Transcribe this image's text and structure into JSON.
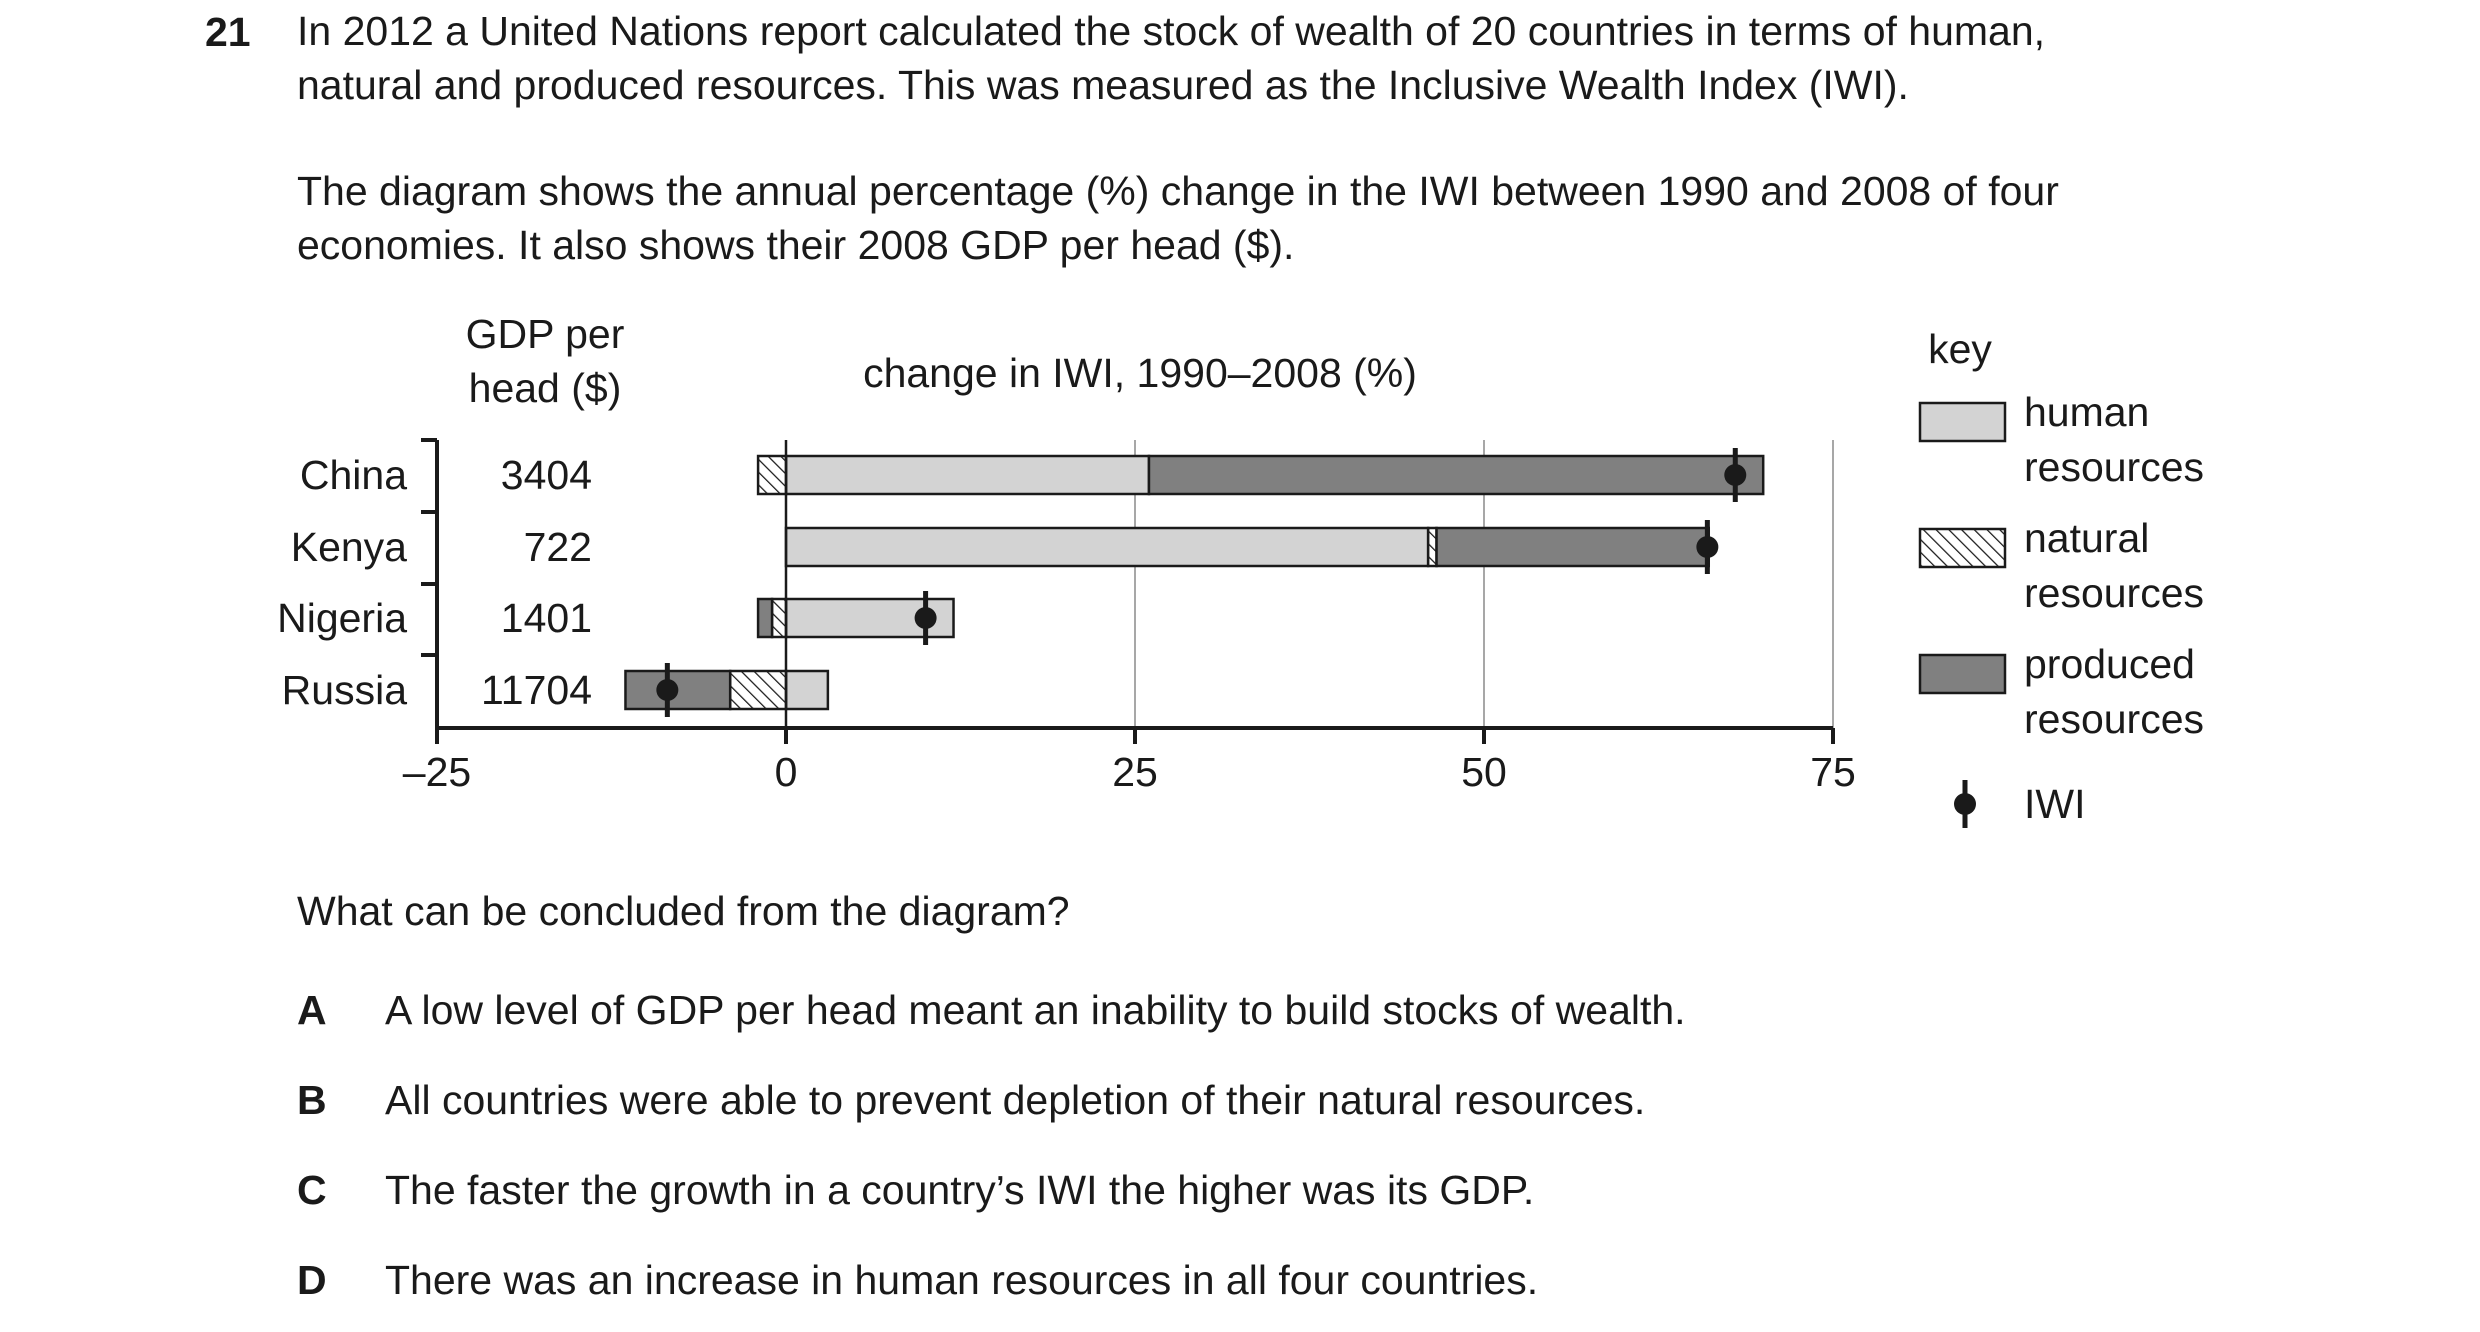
{
  "question": {
    "number": "21",
    "paragraph1_line1": "In 2012 a United Nations report calculated the stock of wealth of 20 countries in terms of human,",
    "paragraph1_line2": "natural and produced resources. This was measured as the Inclusive Wealth Index (IWI).",
    "paragraph2_line1": "The diagram shows the annual percentage (%) change in the IWI between 1990 and 2008 of four",
    "paragraph2_line2": "economies. It also shows their 2008 GDP per head ($).",
    "prompt": "What can be concluded from the diagram?",
    "options": [
      {
        "letter": "A",
        "text": "A low level of GDP per head meant an inability to build stocks of wealth."
      },
      {
        "letter": "B",
        "text": "All countries were able to prevent depletion of their natural resources."
      },
      {
        "letter": "C",
        "text": "The faster the growth in a country’s IWI the higher was its GDP."
      },
      {
        "letter": "D",
        "text": "There was an increase in human resources in all four countries."
      }
    ]
  },
  "chart_data": {
    "type": "bar",
    "orientation": "horizontal-stacked",
    "title": "change in IWI, 1990–2008 (%)",
    "gdp_header_line1": "GDP per",
    "gdp_header_line2": "head ($)",
    "xlim": [
      -25,
      75
    ],
    "xticks": [
      {
        "value": -25,
        "label": "–25"
      },
      {
        "value": 0,
        "label": "0"
      },
      {
        "value": 25,
        "label": "25"
      },
      {
        "value": 50,
        "label": "50"
      },
      {
        "value": 75,
        "label": "75"
      }
    ],
    "grid": true,
    "categories": [
      "China",
      "Kenya",
      "Nigeria",
      "Russia"
    ],
    "gdp_per_head": [
      "3404",
      "722",
      "1401",
      "11704"
    ],
    "series": [
      {
        "name": "human resources",
        "values": [
          26,
          46,
          12,
          3
        ],
        "color": "#d3d3d3"
      },
      {
        "name": "natural resources",
        "values": [
          -2,
          0.6,
          -1,
          -4
        ],
        "color": "hatched"
      },
      {
        "name": "produced resources",
        "values": [
          44,
          19.5,
          -1,
          -7.5
        ],
        "color": "#808080"
      }
    ],
    "iwi": [
      68,
      66,
      10,
      -8.5
    ],
    "legend": {
      "title": "key",
      "placement": "right",
      "items": [
        {
          "line1": "human",
          "line2": "resources",
          "swatch": "human"
        },
        {
          "line1": "natural",
          "line2": "resources",
          "swatch": "natural"
        },
        {
          "line1": "produced",
          "line2": "resources",
          "swatch": "produced"
        },
        {
          "line1": "IWI",
          "line2": "",
          "swatch": "iwi"
        }
      ]
    }
  }
}
